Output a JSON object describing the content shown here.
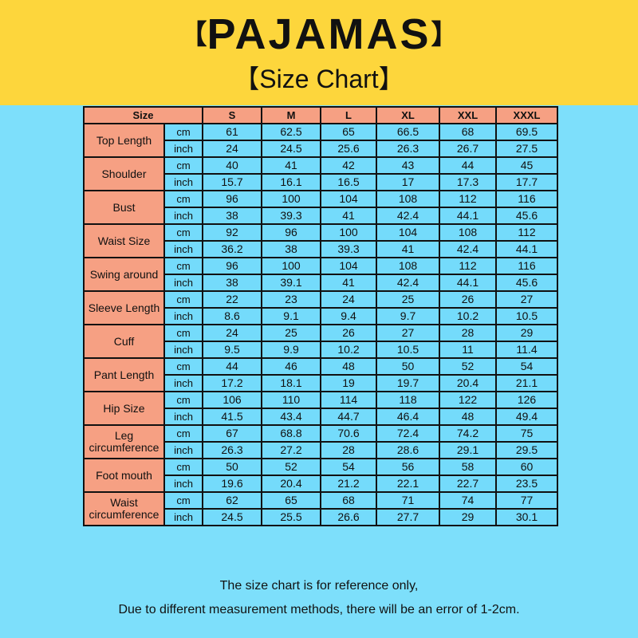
{
  "header": {
    "bracket_left": "【",
    "title": "PAJAMAS",
    "bracket_right": "】",
    "subtitle": "【Size Chart】"
  },
  "colors": {
    "banner": "#fdd63c",
    "background": "#7ddffb",
    "label_cells": "#f6a083",
    "value_cells": "#74dbfb"
  },
  "table": {
    "size_label": "Size",
    "sizes": [
      "S",
      "M",
      "L",
      "XL",
      "XXL",
      "XXXL"
    ],
    "units": [
      "cm",
      "inch"
    ],
    "rows": [
      {
        "name": "Top Length",
        "cm": [
          "61",
          "62.5",
          "65",
          "66.5",
          "68",
          "69.5"
        ],
        "inch": [
          "24",
          "24.5",
          "25.6",
          "26.3",
          "26.7",
          "27.5"
        ]
      },
      {
        "name": "Shoulder",
        "cm": [
          "40",
          "41",
          "42",
          "43",
          "44",
          "45"
        ],
        "inch": [
          "15.7",
          "16.1",
          "16.5",
          "17",
          "17.3",
          "17.7"
        ]
      },
      {
        "name": "Bust",
        "cm": [
          "96",
          "100",
          "104",
          "108",
          "112",
          "116"
        ],
        "inch": [
          "38",
          "39.3",
          "41",
          "42.4",
          "44.1",
          "45.6"
        ]
      },
      {
        "name": "Waist Size",
        "cm": [
          "92",
          "96",
          "100",
          "104",
          "108",
          "112"
        ],
        "inch": [
          "36.2",
          "38",
          "39.3",
          "41",
          "42.4",
          "44.1"
        ]
      },
      {
        "name": "Swing around",
        "cm": [
          "96",
          "100",
          "104",
          "108",
          "112",
          "116"
        ],
        "inch": [
          "38",
          "39.1",
          "41",
          "42.4",
          "44.1",
          "45.6"
        ]
      },
      {
        "name": "Sleeve Length",
        "cm": [
          "22",
          "23",
          "24",
          "25",
          "26",
          "27"
        ],
        "inch": [
          "8.6",
          "9.1",
          "9.4",
          "9.7",
          "10.2",
          "10.5"
        ]
      },
      {
        "name": "Cuff",
        "cm": [
          "24",
          "25",
          "26",
          "27",
          "28",
          "29"
        ],
        "inch": [
          "9.5",
          "9.9",
          "10.2",
          "10.5",
          "11",
          "11.4"
        ]
      },
      {
        "name": "Pant Length",
        "cm": [
          "44",
          "46",
          "48",
          "50",
          "52",
          "54"
        ],
        "inch": [
          "17.2",
          "18.1",
          "19",
          "19.7",
          "20.4",
          "21.1"
        ]
      },
      {
        "name": "Hip Size",
        "cm": [
          "106",
          "110",
          "114",
          "118",
          "122",
          "126"
        ],
        "inch": [
          "41.5",
          "43.4",
          "44.7",
          "46.4",
          "48",
          "49.4"
        ]
      },
      {
        "name": "Leg circumference",
        "cm": [
          "67",
          "68.8",
          "70.6",
          "72.4",
          "74.2",
          "75"
        ],
        "inch": [
          "26.3",
          "27.2",
          "28",
          "28.6",
          "29.1",
          "29.5"
        ]
      },
      {
        "name": "Foot mouth",
        "cm": [
          "50",
          "52",
          "54",
          "56",
          "58",
          "60"
        ],
        "inch": [
          "19.6",
          "20.4",
          "21.2",
          "22.1",
          "22.7",
          "23.5"
        ]
      },
      {
        "name": "Waist circumference",
        "cm": [
          "62",
          "65",
          "68",
          "71",
          "74",
          "77"
        ],
        "inch": [
          "24.5",
          "25.5",
          "26.6",
          "27.7",
          "29",
          "30.1"
        ]
      }
    ]
  },
  "footer": {
    "line1": "The size chart is for reference only,",
    "line2": "Due to different measurement methods, there will be an error of 1-2cm."
  }
}
